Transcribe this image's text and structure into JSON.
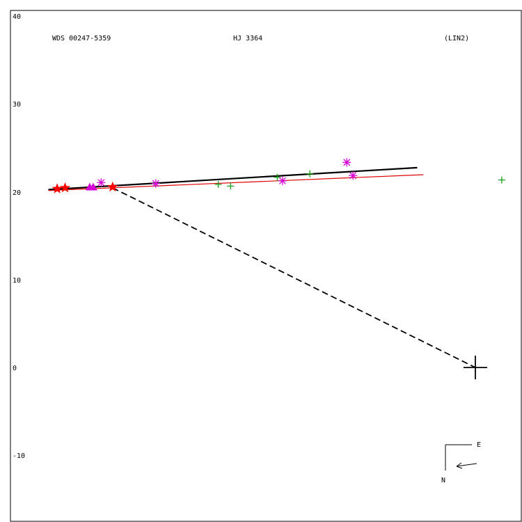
{
  "header": {
    "wds_id": "WDS 00247-5359",
    "designation": "HJ 3364",
    "grade": "(LIN2)"
  },
  "compass": {
    "east": "E",
    "north": "N"
  },
  "colors": {
    "orbit_fit": "#000000",
    "linear_fit": "#e00000",
    "plus_marker": "#1aa01a",
    "asterisk_marker": "#d400d4",
    "triangle_marker": "#d400d4",
    "star_marker": "#ff0000"
  },
  "chart_data": {
    "type": "scatter",
    "title": "",
    "xlabel": "",
    "ylabel": "",
    "ylim": [
      -17,
      40
    ],
    "yticks": [
      40,
      30,
      20,
      10,
      0,
      -10
    ],
    "grid": false,
    "legend": "none",
    "primary_marker": {
      "x": 41.5,
      "y": 0
    },
    "series": [
      {
        "marker": "plus",
        "points": [
          [
            12.3,
            20.8
          ],
          [
            13.7,
            20.6
          ],
          [
            19.0,
            21.6
          ],
          [
            22.7,
            22.0
          ],
          [
            44.5,
            21.3
          ]
        ]
      },
      {
        "marker": "asterisk",
        "points": [
          [
            -1.0,
            21.0
          ],
          [
            5.2,
            20.9
          ],
          [
            19.6,
            21.2
          ],
          [
            26.9,
            23.3
          ],
          [
            27.6,
            21.8
          ]
        ]
      },
      {
        "marker": "triangle",
        "points": [
          [
            -2.3,
            20.5
          ],
          [
            -1.9,
            20.5
          ]
        ]
      },
      {
        "marker": "star",
        "points": [
          [
            -6.0,
            20.3
          ],
          [
            -5.1,
            20.4
          ],
          [
            0.3,
            20.5
          ]
        ]
      }
    ],
    "lines": [
      {
        "kind": "orbit-fit",
        "points": [
          [
            -7.0,
            20.2
          ],
          [
            34.9,
            22.7
          ]
        ]
      },
      {
        "kind": "linear-fit",
        "points": [
          [
            -7.0,
            20.1
          ],
          [
            35.6,
            21.9
          ]
        ]
      },
      {
        "kind": "separation",
        "points": [
          [
            0.3,
            20.4
          ],
          [
            41.5,
            0.0
          ]
        ]
      }
    ]
  }
}
